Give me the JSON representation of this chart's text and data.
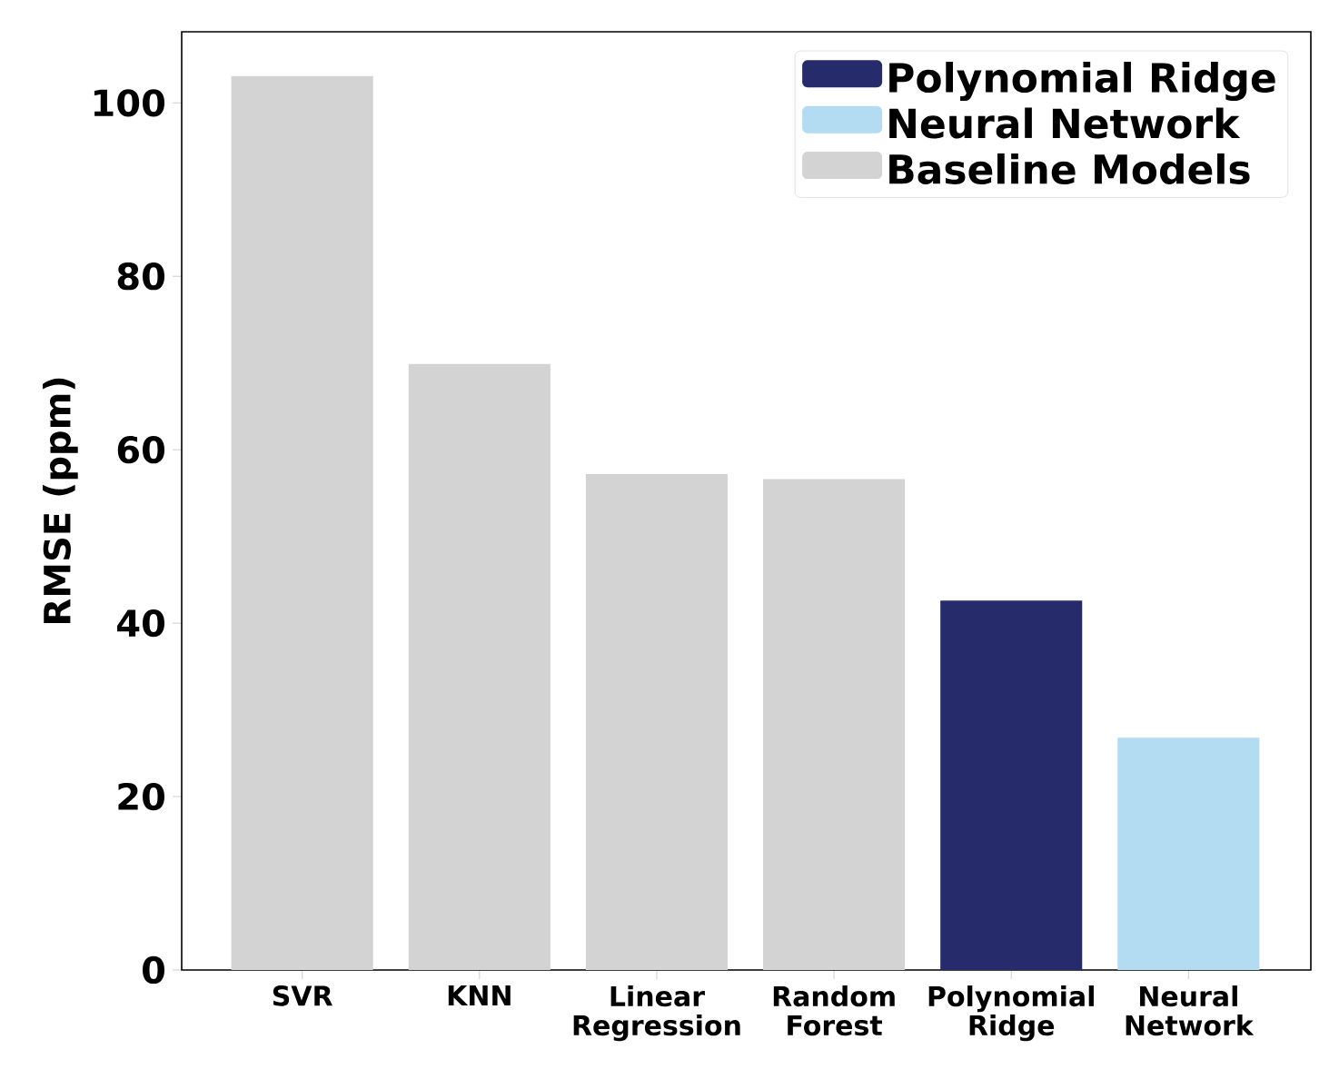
{
  "chart_data": {
    "type": "bar",
    "ylabel": "RMSE (ppm)",
    "categories": [
      "SVR",
      "KNN",
      "Linear\nRegression",
      "Random\nForest",
      "Polynomial\nRidge",
      "Neural\nNetwork"
    ],
    "series": [
      {
        "name": "Polynomial Ridge",
        "color": "#262b6b",
        "values": [
          null,
          null,
          null,
          null,
          42.6,
          null
        ]
      },
      {
        "name": "Neural Network",
        "color": "#b3dcf2",
        "values": [
          null,
          null,
          null,
          null,
          null,
          26.8
        ]
      },
      {
        "name": "Baseline Models",
        "color": "#d3d3d3",
        "values": [
          103.1,
          69.9,
          57.2,
          56.6,
          null,
          null
        ]
      }
    ],
    "ylim": [
      0,
      108.2
    ],
    "yticks": [
      0,
      20,
      40,
      60,
      80,
      100
    ],
    "grid": false,
    "legend": "top right"
  }
}
